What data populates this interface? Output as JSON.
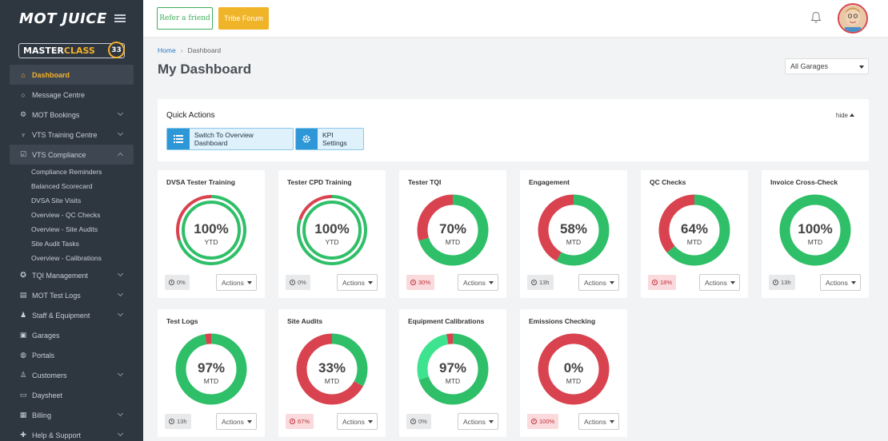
{
  "app": {
    "logo": "MOT JUICE"
  },
  "masterclass": {
    "part1": "MASTER",
    "part2": "CLASS",
    "count": "33"
  },
  "sidebar": {
    "items": [
      {
        "label": "Dashboard",
        "icon": "home-icon",
        "state": "active",
        "chevron": false
      },
      {
        "label": "Message Centre",
        "icon": "chat-icon",
        "chevron": false
      },
      {
        "label": "MOT Bookings",
        "icon": "car-icon",
        "chevron": true
      },
      {
        "label": "VTS Training Centre",
        "icon": "trophy-icon",
        "chevron": true
      },
      {
        "label": "VTS Compliance",
        "icon": "checkbox-icon",
        "state": "open",
        "chevron": true
      },
      {
        "label": "TQI Management",
        "icon": "award-icon",
        "chevron": true
      },
      {
        "label": "MOT Test Logs",
        "icon": "list-icon",
        "chevron": true
      },
      {
        "label": "Staff & Equipment",
        "icon": "user-icon",
        "chevron": true
      },
      {
        "label": "Garages",
        "icon": "garage-icon",
        "chevron": false
      },
      {
        "label": "Portals",
        "icon": "globe-icon",
        "chevron": false
      },
      {
        "label": "Customers",
        "icon": "users-icon",
        "chevron": true
      },
      {
        "label": "Daysheet",
        "icon": "file-icon",
        "chevron": false
      },
      {
        "label": "Billing",
        "icon": "billing-icon",
        "chevron": true
      },
      {
        "label": "Help & Support",
        "icon": "help-icon",
        "chevron": true
      }
    ],
    "subitems": [
      "Compliance Reminders",
      "Balanced Scorecard",
      "DVSA Site Visits",
      "Overview - QC Checks",
      "Overview - Site Audits",
      "Site Audit Tasks",
      "Overview - Calibrations"
    ]
  },
  "topbar": {
    "refer": "Refer a friend",
    "forum": "Tribe Forum"
  },
  "breadcrumb": {
    "home": "Home",
    "current": "Dashboard"
  },
  "page": {
    "title": "My Dashboard",
    "garage_select": "All Garages"
  },
  "quick_actions": {
    "title": "Quick Actions",
    "hide": "hide",
    "buttons": [
      {
        "label": "Switch To Overview Dashboard",
        "icon": "list-icon"
      },
      {
        "label": "KPI Settings",
        "icon": "gear-icon"
      }
    ]
  },
  "colors": {
    "green": "#2fbf68",
    "red": "#d9434f",
    "light_green": "#3ee38f",
    "accent": "#f5b12a"
  },
  "cards": [
    {
      "title": "DVSA Tester Training",
      "value": 100,
      "pct": "100%",
      "period": "YTD",
      "badge": "0%",
      "badge_type": "grey",
      "actions": "Actions",
      "style": "double",
      "outer_green": 0.7
    },
    {
      "title": "Tester CPD Training",
      "value": 100,
      "pct": "100%",
      "period": "YTD",
      "badge": "0%",
      "badge_type": "grey",
      "actions": "Actions",
      "style": "double",
      "outer_green": 0.8
    },
    {
      "title": "Tester TQI",
      "value": 70,
      "pct": "70%",
      "period": "MTD",
      "badge": "30%",
      "badge_type": "red",
      "actions": "Actions",
      "style": "single"
    },
    {
      "title": "Engagement",
      "value": 58,
      "pct": "58%",
      "period": "MTD",
      "badge": "13h",
      "badge_type": "grey",
      "actions": "Actions",
      "style": "single"
    },
    {
      "title": "QC Checks",
      "value": 64,
      "pct": "64%",
      "period": "MTD",
      "badge": "18%",
      "badge_type": "red",
      "actions": "Actions",
      "style": "single"
    },
    {
      "title": "Invoice Cross-Check",
      "value": 100,
      "pct": "100%",
      "period": "MTD",
      "badge": "13h",
      "badge_type": "grey",
      "actions": "Actions",
      "style": "single"
    },
    {
      "title": "Test Logs",
      "value": 97,
      "pct": "97%",
      "period": "MTD",
      "badge": "13h",
      "badge_type": "grey",
      "actions": "Actions",
      "style": "single"
    },
    {
      "title": "Site Audits",
      "value": 33,
      "pct": "33%",
      "period": "MTD",
      "badge": "67%",
      "badge_type": "red",
      "actions": "Actions",
      "style": "single"
    },
    {
      "title": "Equipment Calibrations",
      "value": 97,
      "pct": "97%",
      "period": "MTD",
      "badge": "0%",
      "badge_type": "grey",
      "actions": "Actions",
      "style": "calib"
    },
    {
      "title": "Emissions Checking",
      "value": 0,
      "pct": "0%",
      "period": "MTD",
      "badge": "100%",
      "badge_type": "red",
      "actions": "Actions",
      "style": "single"
    }
  ]
}
